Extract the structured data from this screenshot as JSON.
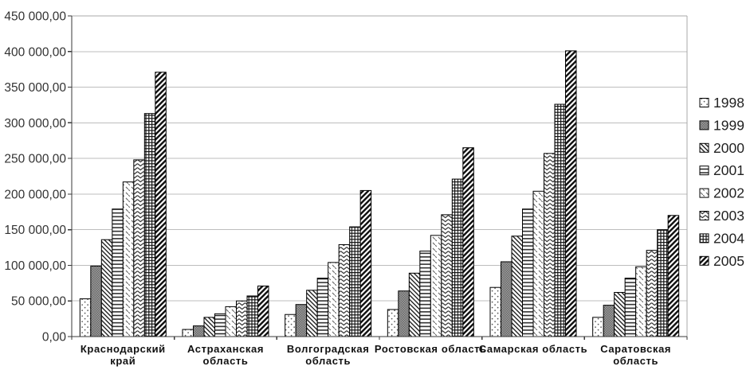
{
  "chart_data": {
    "type": "bar",
    "title": "",
    "xlabel": "",
    "ylabel": "",
    "ylim": [
      0,
      450000
    ],
    "y_tick_step": 50000,
    "y_tick_labels": [
      "0,00",
      "50 000,00",
      "100 000,00",
      "150 000,00",
      "200 000,00",
      "250 000,00",
      "300 000,00",
      "350 000,00",
      "400 000,00",
      "450 000,00"
    ],
    "grid": true,
    "legend_position": "right",
    "categories": [
      "Краснодарский край",
      "Астраханская область",
      "Волгоградская область",
      "Ростовская область",
      "Самарская область",
      "Саратовская область"
    ],
    "category_label_lines": [
      [
        "Краснодарский",
        "край"
      ],
      [
        "Астраханская",
        "область"
      ],
      [
        "Волгоградская",
        "область"
      ],
      [
        "Ростовская область"
      ],
      [
        "Самарская область"
      ],
      [
        "Саратовская",
        "область"
      ]
    ],
    "series": [
      {
        "name": "1998",
        "pattern": "dots",
        "values": [
          53000,
          10000,
          31000,
          38000,
          69000,
          27000
        ]
      },
      {
        "name": "1999",
        "pattern": "checker",
        "values": [
          99000,
          15000,
          45000,
          64000,
          105000,
          44000
        ]
      },
      {
        "name": "2000",
        "pattern": "diagonal-down",
        "values": [
          136000,
          27000,
          65000,
          89000,
          141000,
          62000
        ]
      },
      {
        "name": "2001",
        "pattern": "horizontal-lines",
        "values": [
          179000,
          32000,
          82000,
          120000,
          179000,
          82000
        ]
      },
      {
        "name": "2002",
        "pattern": "diagonal-dashes",
        "values": [
          217000,
          42000,
          104000,
          142000,
          204000,
          98000
        ]
      },
      {
        "name": "2003",
        "pattern": "chevron",
        "values": [
          248000,
          50000,
          129000,
          171000,
          257000,
          121000
        ]
      },
      {
        "name": "2004",
        "pattern": "grid-crosshatch",
        "values": [
          313000,
          57000,
          154000,
          221000,
          326000,
          150000
        ]
      },
      {
        "name": "2005",
        "pattern": "diagonal-up-bold",
        "values": [
          371000,
          71000,
          205000,
          265000,
          401000,
          170000
        ]
      }
    ]
  },
  "colors": {
    "background": "#ffffff",
    "gridline": "#bdbdbd",
    "axis_dark": "#3a3a3a",
    "border_light": "#a8a8a8",
    "bar_stroke": "#000000",
    "tick_text": "#333333",
    "category_text": "#111111",
    "legend_text": "#222222"
  }
}
